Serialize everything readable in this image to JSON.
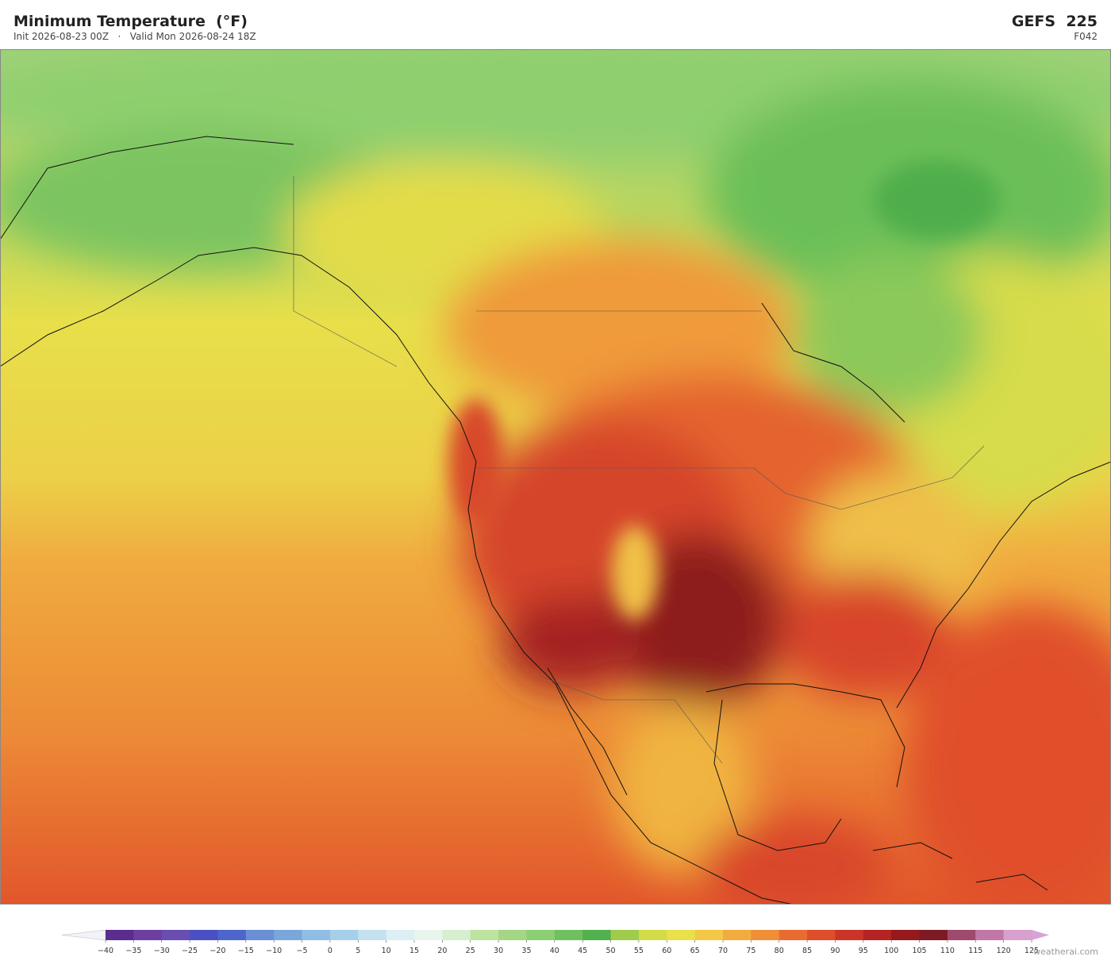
{
  "header": {
    "title": "Minimum Temperature  (°F)",
    "subtitle": "Init 2026-08-23 00Z   ·   Valid Mon 2026-08-24 18Z",
    "model": "GEFS  225",
    "forecast_hour": "F042"
  },
  "colorbar": {
    "ticks": [
      {
        "value": -40,
        "label": "−40"
      },
      {
        "value": -35,
        "label": "−35"
      },
      {
        "value": -30,
        "label": "−30"
      },
      {
        "value": -25,
        "label": "−25"
      },
      {
        "value": -20,
        "label": "−20"
      },
      {
        "value": -15,
        "label": "−15"
      },
      {
        "value": -10,
        "label": "−10"
      },
      {
        "value": -5,
        "label": "−5"
      },
      0,
      5,
      10,
      15,
      20,
      25,
      30,
      35,
      40,
      45,
      50,
      55,
      60,
      65,
      70,
      75,
      80,
      85,
      90,
      95,
      100,
      105,
      110,
      115,
      120,
      125
    ],
    "colors": [
      "#5b2d8e",
      "#6e3fa0",
      "#6a4db0",
      "#4b4fc4",
      "#4d66cc",
      "#6a8fd4",
      "#7aa6dc",
      "#90bde3",
      "#a6d0ea",
      "#c3e1ef",
      "#dceff3",
      "#e8f5ec",
      "#d5efcf",
      "#bde3a0",
      "#a4d686",
      "#8cce74",
      "#6fc160",
      "#52b04e",
      "#9fcc4c",
      "#d2dc48",
      "#eae04a",
      "#f3c847",
      "#f2ab3f",
      "#ef8f38",
      "#e86c2f",
      "#de4e2a",
      "#cc3428",
      "#b42422",
      "#95191d",
      "#7d1a22",
      "#9e4a6e",
      "#c178a8",
      "#d8a0ce"
    ],
    "under_color": "#f2f2f8",
    "over_color": "#d9a2d6"
  },
  "watermark": "weatherai.com"
}
